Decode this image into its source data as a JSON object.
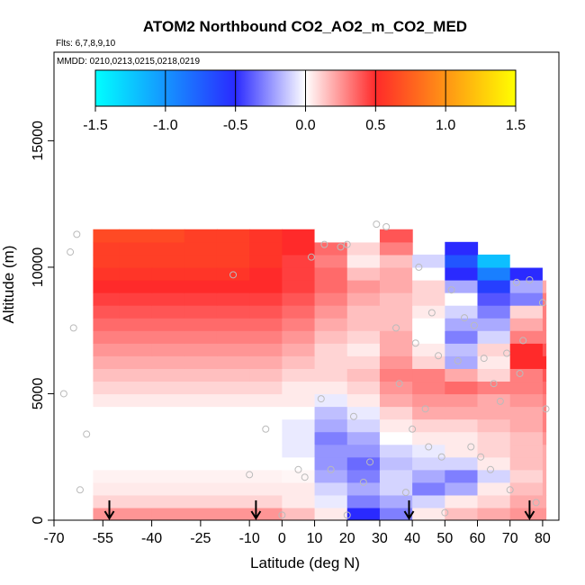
{
  "chart_data": {
    "type": "heatmap",
    "title": "ATOM2 Northbound CO2_AO2_m_CO2_MED",
    "flights_label": "Flts: 6,7,8,9,10",
    "dates_label": "MMDD: 0210,0213,0215,0218,0219",
    "xlabel": "Latitude (deg N)",
    "ylabel": "Altitude (m)",
    "xlim": [
      -70,
      85
    ],
    "ylim": [
      0,
      18500
    ],
    "x_ticks": [
      -70,
      -55,
      -40,
      -25,
      -10,
      0,
      10,
      20,
      30,
      40,
      50,
      60,
      70,
      80
    ],
    "y_ticks": [
      0,
      5000,
      10000,
      15000
    ],
    "colorbar": {
      "range": [
        -1.5,
        1.5
      ],
      "ticks": [
        "-1.5",
        "-1.0",
        "-0.5",
        "0.0",
        "0.5",
        "1.0",
        "1.5"
      ],
      "colors": [
        "#00ffff",
        "#2a2aff",
        "#ffffff",
        "#ff2a2a",
        "#ffff00"
      ]
    },
    "profile_markers_lat": [
      -53,
      -8,
      39,
      76
    ],
    "alt_bins_m": [
      0,
      500,
      1000,
      1500,
      2000,
      2500,
      3000,
      3500,
      4000,
      4500,
      5000,
      5500,
      6000,
      6500,
      7000,
      7500,
      8000,
      8500,
      9000,
      9500,
      10000,
      10500,
      11000
    ],
    "lat_bins_deg": [
      -58,
      -50,
      -40,
      -30,
      -20,
      -10,
      0,
      10,
      20,
      30,
      40,
      50,
      60,
      70,
      80
    ],
    "values_rows_by_alt": [
      [
        0.25,
        0.25,
        0.25,
        0.25,
        0.25,
        0.25,
        0.15,
        0.05,
        -0.5,
        -0.3,
        0.05,
        0.15,
        0.2,
        0.25,
        0.25
      ],
      [
        0.1,
        0.1,
        0.1,
        0.1,
        0.1,
        0.1,
        0.05,
        -0.05,
        -0.3,
        -0.2,
        -0.1,
        0.05,
        0.1,
        0.2,
        0.2
      ],
      [
        0.05,
        0.05,
        0.05,
        0.05,
        0.05,
        0.05,
        0.05,
        -0.1,
        -0.2,
        -0.1,
        -0.3,
        -0.2,
        0.05,
        0.15,
        0.2
      ],
      [
        0.03,
        0.03,
        0.03,
        0.03,
        0.03,
        0.03,
        0.02,
        -0.2,
        -0.3,
        -0.1,
        -0.2,
        -0.3,
        -0.1,
        0.1,
        0.2
      ],
      [
        0.0,
        0.0,
        0.0,
        0.0,
        0.0,
        0.0,
        0.0,
        -0.25,
        -0.35,
        -0.15,
        -0.1,
        -0.1,
        0.05,
        0.15,
        0.2
      ],
      [
        0.0,
        0.0,
        0.0,
        0.0,
        0.0,
        0.0,
        -0.05,
        -0.25,
        -0.25,
        -0.1,
        -0.05,
        0.05,
        0.1,
        0.15,
        0.2
      ],
      [
        0.0,
        0.0,
        0.0,
        0.0,
        0.0,
        0.0,
        -0.05,
        -0.3,
        -0.2,
        0.0,
        0.05,
        0.05,
        0.1,
        0.15,
        0.25
      ],
      [
        0.0,
        0.0,
        0.0,
        0.0,
        0.0,
        0.0,
        -0.05,
        -0.2,
        -0.1,
        0.05,
        0.1,
        0.1,
        0.15,
        0.2,
        0.3
      ],
      [
        0.0,
        0.0,
        0.0,
        0.0,
        0.0,
        0.0,
        0.0,
        -0.15,
        -0.05,
        0.1,
        0.2,
        0.2,
        0.2,
        0.2,
        0.3
      ],
      [
        0.05,
        0.05,
        0.05,
        0.05,
        0.05,
        0.05,
        0.05,
        -0.05,
        0.05,
        0.2,
        0.25,
        0.25,
        0.2,
        0.25,
        0.3
      ],
      [
        0.1,
        0.1,
        0.1,
        0.1,
        0.1,
        0.1,
        0.05,
        0.05,
        0.1,
        0.25,
        0.3,
        0.35,
        0.3,
        0.3,
        0.35
      ],
      [
        0.15,
        0.15,
        0.15,
        0.15,
        0.15,
        0.15,
        0.1,
        0.1,
        0.15,
        0.3,
        0.3,
        0.2,
        0.1,
        0.3,
        0.4
      ],
      [
        0.2,
        0.2,
        0.2,
        0.2,
        0.2,
        0.2,
        0.15,
        0.1,
        0.1,
        0.25,
        0.1,
        -0.2,
        0.05,
        0.5,
        0.5
      ],
      [
        0.25,
        0.25,
        0.25,
        0.25,
        0.25,
        0.25,
        0.2,
        0.1,
        0.05,
        0.2,
        0.05,
        -0.15,
        0.1,
        0.5,
        0.4
      ],
      [
        0.3,
        0.3,
        0.3,
        0.3,
        0.3,
        0.3,
        0.25,
        0.15,
        0.1,
        0.2,
        0.0,
        -0.3,
        -0.1,
        0.3,
        0.3
      ],
      [
        0.35,
        0.35,
        0.35,
        0.35,
        0.35,
        0.35,
        0.3,
        0.2,
        0.15,
        0.15,
        0.0,
        -0.2,
        -0.2,
        0.2,
        0.3
      ],
      [
        0.4,
        0.4,
        0.4,
        0.4,
        0.4,
        0.4,
        0.35,
        0.25,
        0.15,
        0.15,
        0.05,
        -0.1,
        -0.3,
        0.1,
        0.3
      ],
      [
        0.45,
        0.45,
        0.45,
        0.45,
        0.45,
        0.45,
        0.4,
        0.3,
        0.2,
        0.15,
        0.1,
        0.0,
        -0.4,
        -0.3,
        0.3
      ],
      [
        0.5,
        0.5,
        0.5,
        0.5,
        0.5,
        0.5,
        0.45,
        0.35,
        0.25,
        0.2,
        0.1,
        -0.2,
        -0.6,
        -0.2,
        0.2
      ],
      [
        0.55,
        0.55,
        0.55,
        0.55,
        0.55,
        0.5,
        0.45,
        0.35,
        0.15,
        0.2,
        0.0,
        -0.5,
        -0.9,
        -0.5,
        0.0
      ],
      [
        0.6,
        0.6,
        0.6,
        0.6,
        0.6,
        0.55,
        0.45,
        0.3,
        0.05,
        0.15,
        -0.1,
        -0.7,
        -1.2,
        0.0,
        0.0
      ],
      [
        0.6,
        0.6,
        0.6,
        0.6,
        0.6,
        0.55,
        0.5,
        0.35,
        0.1,
        0.3,
        0.0,
        -0.5,
        0.0,
        0.0,
        0.0
      ],
      [
        0.65,
        0.65,
        0.65,
        0.6,
        0.6,
        0.55,
        0.5,
        0.0,
        0.0,
        0.4,
        0.0,
        0.0,
        0.0,
        0.0,
        0.0
      ]
    ],
    "sample_points": [
      [
        -67,
        5000
      ],
      [
        -65,
        10600
      ],
      [
        -64,
        7600
      ],
      [
        -63,
        11300
      ],
      [
        -60,
        3400
      ],
      [
        -62,
        1200
      ],
      [
        -15,
        9700
      ],
      [
        -10,
        1800
      ],
      [
        -5,
        3600
      ],
      [
        0,
        200
      ],
      [
        5,
        2000
      ],
      [
        7,
        1700
      ],
      [
        9,
        10400
      ],
      [
        12,
        4800
      ],
      [
        13,
        10900
      ],
      [
        15,
        2000
      ],
      [
        18,
        10800
      ],
      [
        20,
        200
      ],
      [
        20,
        10900
      ],
      [
        22,
        4100
      ],
      [
        25,
        1500
      ],
      [
        27,
        2300
      ],
      [
        29,
        11700
      ],
      [
        32,
        11600
      ],
      [
        35,
        7600
      ],
      [
        36,
        5400
      ],
      [
        38,
        1100
      ],
      [
        40,
        3600
      ],
      [
        41,
        7000
      ],
      [
        42,
        10000
      ],
      [
        44,
        4400
      ],
      [
        45,
        2900
      ],
      [
        46,
        8200
      ],
      [
        48,
        6500
      ],
      [
        49,
        2500
      ],
      [
        50,
        300
      ],
      [
        52,
        9100
      ],
      [
        54,
        6300
      ],
      [
        56,
        8000
      ],
      [
        58,
        2900
      ],
      [
        59,
        7700
      ],
      [
        61,
        2500
      ],
      [
        62,
        6400
      ],
      [
        64,
        2000
      ],
      [
        65,
        5400
      ],
      [
        67,
        4700
      ],
      [
        69,
        6600
      ],
      [
        70,
        1200
      ],
      [
        72,
        9400
      ],
      [
        73,
        5800
      ],
      [
        74,
        7100
      ],
      [
        76,
        9500
      ],
      [
        78,
        700
      ],
      [
        80,
        8600
      ],
      [
        81,
        4400
      ]
    ]
  }
}
